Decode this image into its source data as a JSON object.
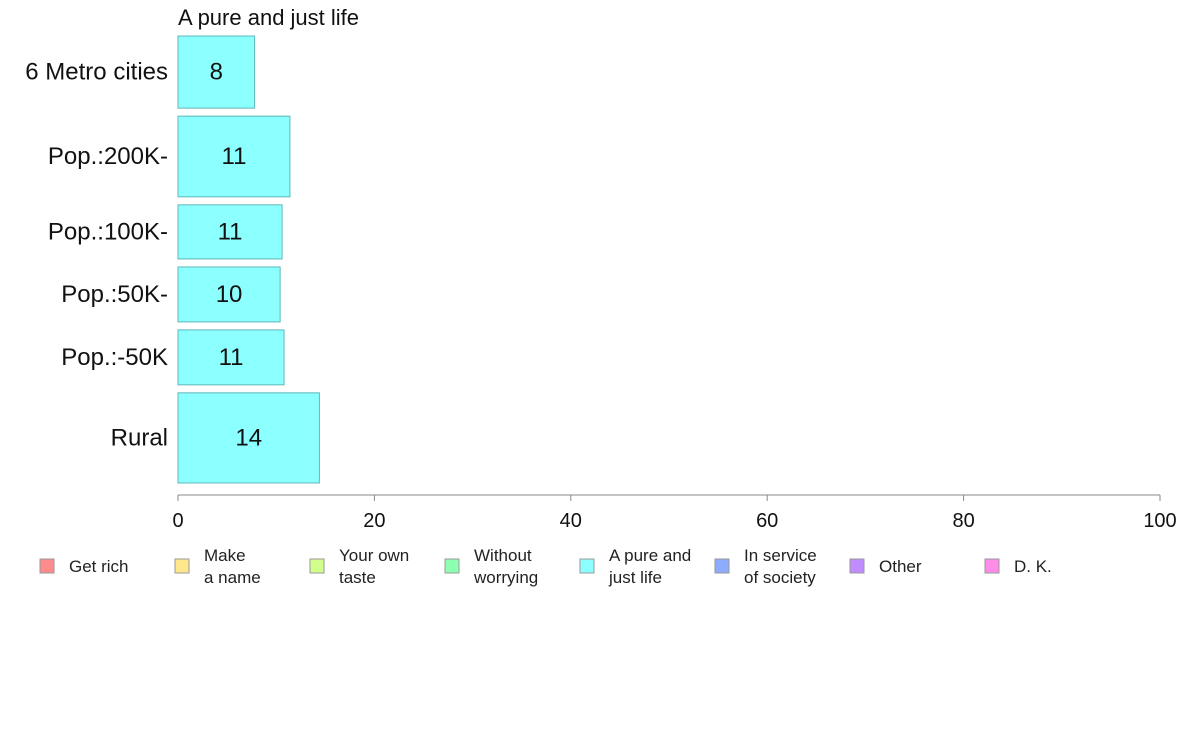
{
  "chart_data": {
    "type": "bar",
    "orientation": "horizontal",
    "title": "A pure and just life",
    "categories": [
      "6 Metro cities",
      "Pop.:200K-",
      "Pop.:100K-",
      "Pop.:50K-",
      "Pop.:-50K",
      "Rural"
    ],
    "values": [
      7.8,
      11.4,
      10.6,
      10.4,
      10.8,
      14.4
    ],
    "value_labels": [
      "8",
      "11",
      "11",
      "10",
      "11",
      "14"
    ],
    "relative_band_widths": [
      0.84,
      0.94,
      0.63,
      0.64,
      0.64,
      1.05
    ],
    "xlim": [
      0,
      100
    ],
    "x_ticks": [
      0,
      20,
      40,
      60,
      80,
      100
    ],
    "xlabel": "",
    "ylabel": "",
    "bar_color": "#8cffff",
    "bar_stroke": "#5fb8b8",
    "grid": false,
    "legend_position": "bottom",
    "legend": [
      {
        "lines": [
          "Get rich"
        ],
        "color": "#ff8c8c"
      },
      {
        "lines": [
          "Make",
          "a name"
        ],
        "color": "#ffe88c"
      },
      {
        "lines": [
          "Your own",
          "taste"
        ],
        "color": "#d2ff8c"
      },
      {
        "lines": [
          "Without",
          "worrying"
        ],
        "color": "#8cffb0"
      },
      {
        "lines": [
          "A pure and",
          "just life"
        ],
        "color": "#8cffff"
      },
      {
        "lines": [
          "In service",
          "of society"
        ],
        "color": "#8cacff"
      },
      {
        "lines": [
          "Other"
        ],
        "color": "#c08cff"
      },
      {
        "lines": [
          "D. K."
        ],
        "color": "#ff8ce8"
      }
    ]
  }
}
